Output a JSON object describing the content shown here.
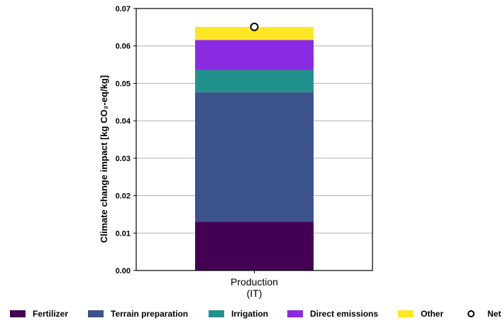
{
  "chart_data": {
    "type": "bar",
    "stacked": true,
    "categories": [
      "Production\n(IT)"
    ],
    "ylabel": "Climate change impact [kg CO₂-eq/kg]",
    "ylim": [
      0,
      0.07
    ],
    "yticks": [
      0.0,
      0.01,
      0.02,
      0.03,
      0.04,
      0.05,
      0.06,
      0.07
    ],
    "ytick_labels": [
      "0.00",
      "0.01",
      "0.02",
      "0.03",
      "0.04",
      "0.05",
      "0.06",
      "0.07"
    ],
    "grid": true,
    "legend_position": "bottom",
    "series": [
      {
        "name": "Fertilizer",
        "color": "#440154",
        "values": [
          0.013
        ]
      },
      {
        "name": "Terrain preparation",
        "color": "#3b528b",
        "values": [
          0.0346
        ]
      },
      {
        "name": "Irrigation",
        "color": "#21918c",
        "values": [
          0.006
        ]
      },
      {
        "name": "Direct emissions",
        "color": "#8a2be2",
        "values": [
          0.008
        ]
      },
      {
        "name": "Other",
        "color": "#fde725",
        "values": [
          0.0035
        ]
      }
    ],
    "net": {
      "name": "Net",
      "values": [
        0.0651
      ]
    }
  }
}
